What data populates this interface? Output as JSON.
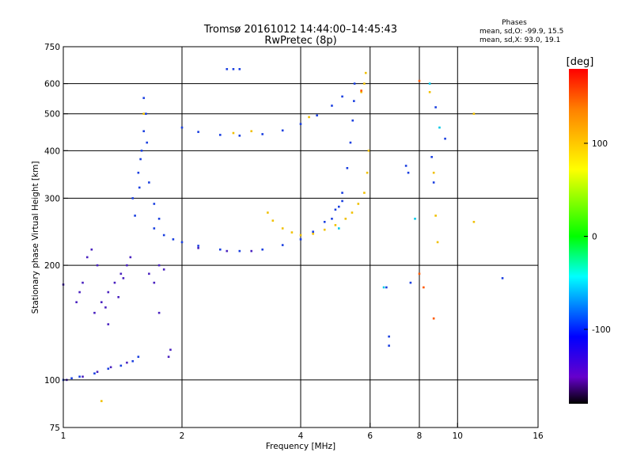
{
  "chart_data": {
    "type": "scatter",
    "title": "Tromsø 20161012 14:44:00–14:45:43",
    "subtitle": "RwPretec (8p)",
    "xlabel": "Frequency [MHz]",
    "ylabel": "Stationary phase Virtual Height [km]",
    "x_scale": "log",
    "y_scale": "log",
    "xlim": [
      1,
      16
    ],
    "ylim": [
      75,
      750
    ],
    "x_ticks": [
      1,
      2,
      4,
      6,
      8,
      10,
      16
    ],
    "y_ticks": [
      75,
      100,
      200,
      300,
      400,
      500,
      600,
      750
    ],
    "x_gridlines": [
      2,
      4,
      6,
      8,
      10
    ],
    "y_gridlines": [
      100,
      200,
      300,
      400,
      500,
      600
    ],
    "grid": true,
    "stats": {
      "heading": "Phases",
      "o_line": "mean, sd,O:  -99.9, 15.5",
      "x_line": "mean, sd,X:  93.0, 19.1"
    },
    "colorbar": {
      "label": "[deg]",
      "range": [
        -180,
        180
      ],
      "ticks": [
        100,
        0,
        -100
      ],
      "colors": [
        "#ff0000",
        "#ff8000",
        "#ffff00",
        "#00ff00",
        "#00ffff",
        "#0000ff",
        "#6600cc",
        "#000000"
      ]
    },
    "series": [
      {
        "phase_deg": -105,
        "color": "#1a3fe0",
        "points": [
          {
            "x": 1.0,
            "y": 100
          },
          {
            "x": 1.05,
            "y": 101
          },
          {
            "x": 1.1,
            "y": 102
          },
          {
            "x": 1.2,
            "y": 104
          },
          {
            "x": 1.3,
            "y": 107
          },
          {
            "x": 1.4,
            "y": 109
          },
          {
            "x": 1.5,
            "y": 112
          },
          {
            "x": 1.55,
            "y": 115
          },
          {
            "x": 1.5,
            "y": 300
          },
          {
            "x": 1.55,
            "y": 350
          },
          {
            "x": 1.58,
            "y": 400
          },
          {
            "x": 1.6,
            "y": 450
          },
          {
            "x": 1.62,
            "y": 500
          },
          {
            "x": 1.6,
            "y": 550
          },
          {
            "x": 1.52,
            "y": 270
          },
          {
            "x": 1.56,
            "y": 320
          },
          {
            "x": 1.63,
            "y": 420
          },
          {
            "x": 1.57,
            "y": 380
          },
          {
            "x": 1.65,
            "y": 330
          },
          {
            "x": 1.7,
            "y": 290
          },
          {
            "x": 1.75,
            "y": 265
          },
          {
            "x": 1.7,
            "y": 250
          },
          {
            "x": 1.8,
            "y": 240
          },
          {
            "x": 1.9,
            "y": 234
          },
          {
            "x": 2.0,
            "y": 230
          },
          {
            "x": 2.2,
            "y": 225
          },
          {
            "x": 2.5,
            "y": 220
          },
          {
            "x": 2.8,
            "y": 218
          },
          {
            "x": 3.2,
            "y": 220
          },
          {
            "x": 3.6,
            "y": 226
          },
          {
            "x": 4.0,
            "y": 234
          },
          {
            "x": 4.3,
            "y": 245
          },
          {
            "x": 4.6,
            "y": 260
          },
          {
            "x": 4.9,
            "y": 280
          },
          {
            "x": 5.1,
            "y": 310
          },
          {
            "x": 5.25,
            "y": 360
          },
          {
            "x": 5.35,
            "y": 420
          },
          {
            "x": 5.42,
            "y": 480
          },
          {
            "x": 5.46,
            "y": 540
          },
          {
            "x": 5.48,
            "y": 600
          },
          {
            "x": 2.0,
            "y": 460
          },
          {
            "x": 2.2,
            "y": 448
          },
          {
            "x": 2.5,
            "y": 440
          },
          {
            "x": 2.8,
            "y": 438
          },
          {
            "x": 3.2,
            "y": 442
          },
          {
            "x": 3.6,
            "y": 452
          },
          {
            "x": 4.0,
            "y": 470
          },
          {
            "x": 4.4,
            "y": 495
          },
          {
            "x": 4.8,
            "y": 525
          },
          {
            "x": 5.1,
            "y": 555
          },
          {
            "x": 2.6,
            "y": 655
          },
          {
            "x": 2.7,
            "y": 655
          },
          {
            "x": 2.8,
            "y": 655
          },
          {
            "x": 4.8,
            "y": 265
          },
          {
            "x": 5.0,
            "y": 285
          },
          {
            "x": 5.1,
            "y": 295
          },
          {
            "x": 6.7,
            "y": 123
          },
          {
            "x": 6.7,
            "y": 130
          },
          {
            "x": 6.6,
            "y": 175
          },
          {
            "x": 7.6,
            "y": 180
          },
          {
            "x": 7.5,
            "y": 350
          },
          {
            "x": 7.4,
            "y": 365
          },
          {
            "x": 8.6,
            "y": 385
          },
          {
            "x": 8.7,
            "y": 330
          },
          {
            "x": 8.8,
            "y": 520
          },
          {
            "x": 9.3,
            "y": 430
          },
          {
            "x": 13.0,
            "y": 185
          }
        ]
      },
      {
        "phase_deg": -120,
        "color": "#4a22c0",
        "points": [
          {
            "x": 1.02,
            "y": 100
          },
          {
            "x": 1.12,
            "y": 102
          },
          {
            "x": 1.22,
            "y": 105
          },
          {
            "x": 1.32,
            "y": 108
          },
          {
            "x": 1.45,
            "y": 111
          },
          {
            "x": 1.2,
            "y": 150
          },
          {
            "x": 1.25,
            "y": 160
          },
          {
            "x": 1.3,
            "y": 170
          },
          {
            "x": 1.35,
            "y": 180
          },
          {
            "x": 1.4,
            "y": 190
          },
          {
            "x": 1.45,
            "y": 200
          },
          {
            "x": 1.3,
            "y": 140
          },
          {
            "x": 1.28,
            "y": 155
          },
          {
            "x": 1.38,
            "y": 165
          },
          {
            "x": 1.42,
            "y": 185
          },
          {
            "x": 1.48,
            "y": 210
          },
          {
            "x": 1.15,
            "y": 210
          },
          {
            "x": 1.18,
            "y": 220
          },
          {
            "x": 1.22,
            "y": 200
          },
          {
            "x": 1.1,
            "y": 170
          },
          {
            "x": 1.08,
            "y": 160
          },
          {
            "x": 1.12,
            "y": 180
          },
          {
            "x": 1.65,
            "y": 190
          },
          {
            "x": 1.7,
            "y": 180
          },
          {
            "x": 1.75,
            "y": 200
          },
          {
            "x": 1.8,
            "y": 195
          },
          {
            "x": 1.85,
            "y": 115
          },
          {
            "x": 1.87,
            "y": 120
          },
          {
            "x": 2.2,
            "y": 222
          },
          {
            "x": 2.6,
            "y": 218
          },
          {
            "x": 3.0,
            "y": 218
          },
          {
            "x": 1.0,
            "y": 178
          },
          {
            "x": 1.75,
            "y": 150
          }
        ]
      },
      {
        "phase_deg": 90,
        "color": "#f0c000",
        "points": [
          {
            "x": 3.3,
            "y": 275
          },
          {
            "x": 3.4,
            "y": 262
          },
          {
            "x": 3.6,
            "y": 250
          },
          {
            "x": 3.8,
            "y": 244
          },
          {
            "x": 4.0,
            "y": 240
          },
          {
            "x": 4.3,
            "y": 242
          },
          {
            "x": 4.6,
            "y": 248
          },
          {
            "x": 4.9,
            "y": 255
          },
          {
            "x": 5.2,
            "y": 265
          },
          {
            "x": 5.4,
            "y": 275
          },
          {
            "x": 5.6,
            "y": 290
          },
          {
            "x": 5.8,
            "y": 310
          },
          {
            "x": 5.9,
            "y": 350
          },
          {
            "x": 5.95,
            "y": 400
          },
          {
            "x": 5.7,
            "y": 570
          },
          {
            "x": 5.8,
            "y": 600
          },
          {
            "x": 5.85,
            "y": 640
          },
          {
            "x": 2.7,
            "y": 445
          },
          {
            "x": 3.0,
            "y": 450
          },
          {
            "x": 4.2,
            "y": 490
          },
          {
            "x": 1.25,
            "y": 88
          },
          {
            "x": 1.6,
            "y": 500
          },
          {
            "x": 8.5,
            "y": 570
          },
          {
            "x": 8.7,
            "y": 350
          },
          {
            "x": 8.8,
            "y": 270
          },
          {
            "x": 8.9,
            "y": 230
          },
          {
            "x": 11.0,
            "y": 260
          },
          {
            "x": 11.0,
            "y": 500
          }
        ]
      },
      {
        "phase_deg": 150,
        "color": "#ff5a00",
        "points": [
          {
            "x": 8.0,
            "y": 610
          },
          {
            "x": 8.0,
            "y": 190
          },
          {
            "x": 8.2,
            "y": 175
          },
          {
            "x": 8.7,
            "y": 145
          },
          {
            "x": 5.7,
            "y": 575
          }
        ]
      },
      {
        "phase_deg": -45,
        "color": "#00c8e6",
        "points": [
          {
            "x": 5.0,
            "y": 250
          },
          {
            "x": 6.5,
            "y": 175
          },
          {
            "x": 8.5,
            "y": 600
          },
          {
            "x": 9.0,
            "y": 460
          },
          {
            "x": 7.8,
            "y": 265
          }
        ]
      }
    ]
  }
}
